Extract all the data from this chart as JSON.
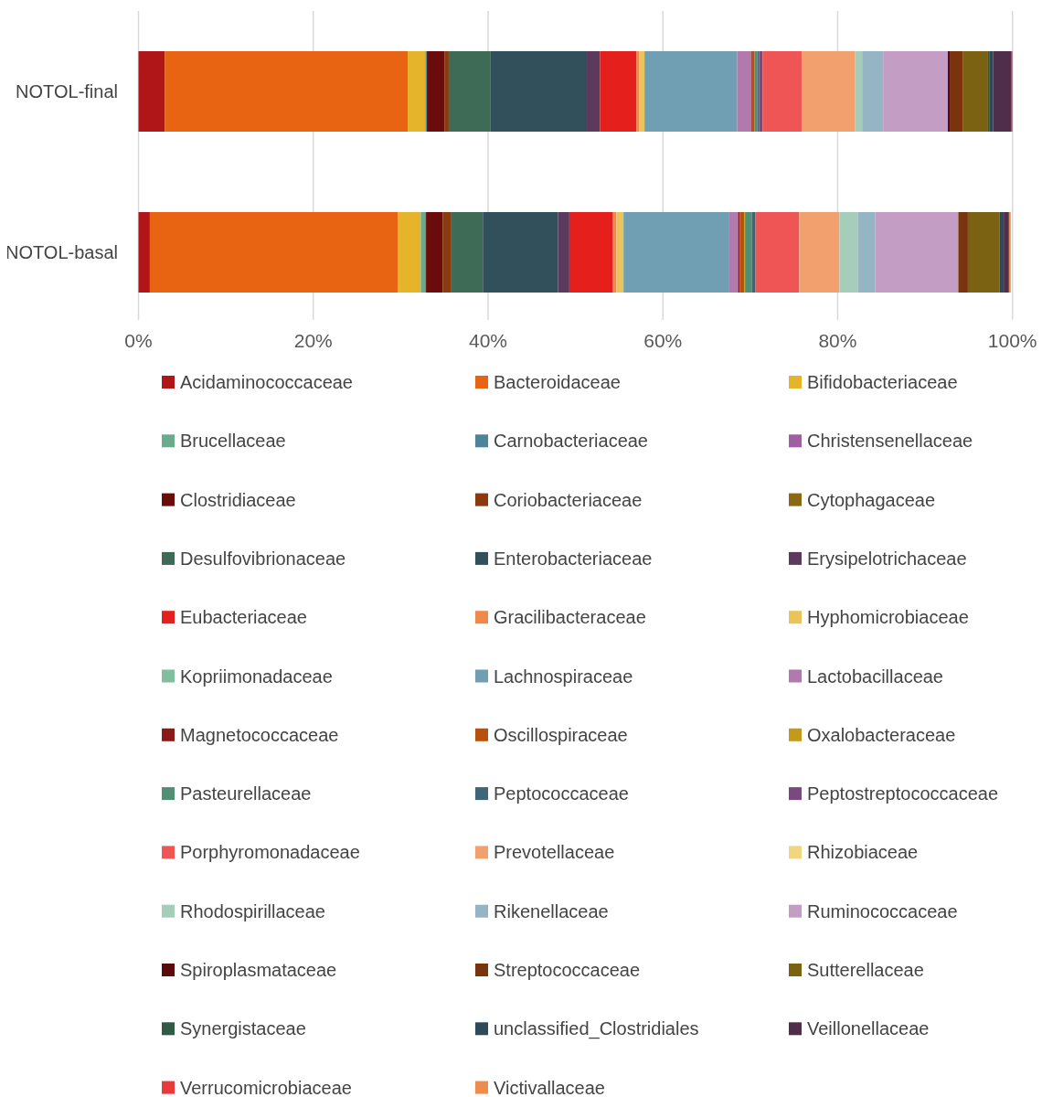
{
  "chart_data": {
    "type": "bar",
    "orientation": "horizontal",
    "stacked": true,
    "grid": "x",
    "legend": "bottom",
    "categories": [
      "NOTOL-final",
      "NOTOL-basal"
    ],
    "xlim": [
      0,
      100
    ],
    "xticks": [
      {
        "value": 0,
        "label": "0%"
      },
      {
        "value": 20,
        "label": "20%"
      },
      {
        "value": 40,
        "label": "40%"
      },
      {
        "value": 60,
        "label": "60%"
      },
      {
        "value": 80,
        "label": "80%"
      },
      {
        "value": 100,
        "label": "100%"
      }
    ],
    "series": [
      {
        "name": "Acidaminococcaceae",
        "color": "#b01518",
        "values": [
          3.0,
          1.3
        ]
      },
      {
        "name": "Bacteroidaceae",
        "color": "#e86412",
        "values": [
          27.8,
          28.4
        ]
      },
      {
        "name": "Bifidobacteriaceae",
        "color": "#e5b42a",
        "values": [
          2.0,
          2.6
        ]
      },
      {
        "name": "Brucellaceae",
        "color": "#6aab8e",
        "values": [
          0.1,
          0.5
        ]
      },
      {
        "name": "Carnobacteriaceae",
        "color": "#4e8499",
        "values": [
          0.1,
          0.1
        ]
      },
      {
        "name": "Christensenellaceae",
        "color": "#a05fa0",
        "values": [
          0,
          0
        ]
      },
      {
        "name": "Clostridiaceae",
        "color": "#6a0c0b",
        "values": [
          2.0,
          1.9
        ]
      },
      {
        "name": "Coriobacteriaceae",
        "color": "#8b3a0f",
        "values": [
          0.5,
          1.0
        ]
      },
      {
        "name": "Cytophagaceae",
        "color": "#8b6914",
        "values": [
          0,
          0
        ]
      },
      {
        "name": "Desulfovibrionaceae",
        "color": "#3d6b55",
        "values": [
          4.8,
          3.6
        ]
      },
      {
        "name": "Enterobacteriaceae",
        "color": "#32505c",
        "values": [
          11.0,
          8.6
        ]
      },
      {
        "name": "Erysipelotrichaceae",
        "color": "#5c3a5e",
        "values": [
          1.5,
          1.3
        ]
      },
      {
        "name": "Eubacteriaceae",
        "color": "#e5201c",
        "values": [
          4.2,
          5.0
        ]
      },
      {
        "name": "Gracilibacteraceae",
        "color": "#f08a4b",
        "values": [
          0.3,
          0.4
        ]
      },
      {
        "name": "Hyphomicrobiaceae",
        "color": "#e9c45a",
        "values": [
          0.6,
          0.8
        ]
      },
      {
        "name": "Kopriimonadaceae",
        "color": "#7fbf9f",
        "values": [
          0,
          0
        ]
      },
      {
        "name": "Lachnospiraceae",
        "color": "#709eb2",
        "values": [
          10.6,
          12.1
        ]
      },
      {
        "name": "Lactobacillaceae",
        "color": "#b07aad",
        "values": [
          1.6,
          1.0
        ]
      },
      {
        "name": "Magnetococcaceae",
        "color": "#8b1a1a",
        "values": [
          0.1,
          0.2
        ]
      },
      {
        "name": "Oscillospiraceae",
        "color": "#b8500e",
        "values": [
          0.3,
          0.5
        ]
      },
      {
        "name": "Oxalobacteraceae",
        "color": "#c49a1a",
        "values": [
          0,
          0.1
        ]
      },
      {
        "name": "Pasteurellaceae",
        "color": "#4f8f73",
        "values": [
          0.3,
          0.8
        ]
      },
      {
        "name": "Peptococcaceae",
        "color": "#3f6578",
        "values": [
          0.2,
          0.4
        ]
      },
      {
        "name": "Peptostreptococcaceae",
        "color": "#7a4a7e",
        "values": [
          0.4,
          0
        ]
      },
      {
        "name": "Porphyromonadaceae",
        "color": "#ef5555",
        "values": [
          4.5,
          5.0
        ]
      },
      {
        "name": "Prevotellaceae",
        "color": "#f2a06e",
        "values": [
          6.1,
          4.6
        ]
      },
      {
        "name": "Rhizobiaceae",
        "color": "#f1d57f",
        "values": [
          0,
          0
        ]
      },
      {
        "name": "Rhodospirillaceae",
        "color": "#a6cdb9",
        "values": [
          0.8,
          2.1
        ]
      },
      {
        "name": "Rikenellaceae",
        "color": "#95b5c5",
        "values": [
          2.4,
          2.0
        ]
      },
      {
        "name": "Ruminococcaceae",
        "color": "#c49dc4",
        "values": [
          7.4,
          9.5
        ]
      },
      {
        "name": "Spiroplasmataceae",
        "color": "#5a0a0a",
        "values": [
          0.3,
          0
        ]
      },
      {
        "name": "Streptococcaceae",
        "color": "#7a340d",
        "values": [
          1.4,
          1.1
        ]
      },
      {
        "name": "Sutterellaceae",
        "color": "#7a6212",
        "values": [
          2.9,
          3.6
        ]
      },
      {
        "name": "Synergistaceae",
        "color": "#2f5a45",
        "values": [
          0.2,
          0
        ]
      },
      {
        "name": "unclassified_Clostridiales",
        "color": "#2e4a58",
        "values": [
          0.4,
          0.5
        ]
      },
      {
        "name": "Veillonellaceae",
        "color": "#4f2e4c",
        "values": [
          2.1,
          0.6
        ]
      },
      {
        "name": "Verrucomicrobiaceae",
        "color": "#e83a3a",
        "values": [
          0.1,
          0
        ]
      },
      {
        "name": "Victivallaceae",
        "color": "#f08c4b",
        "values": [
          0,
          0.2
        ]
      }
    ]
  }
}
